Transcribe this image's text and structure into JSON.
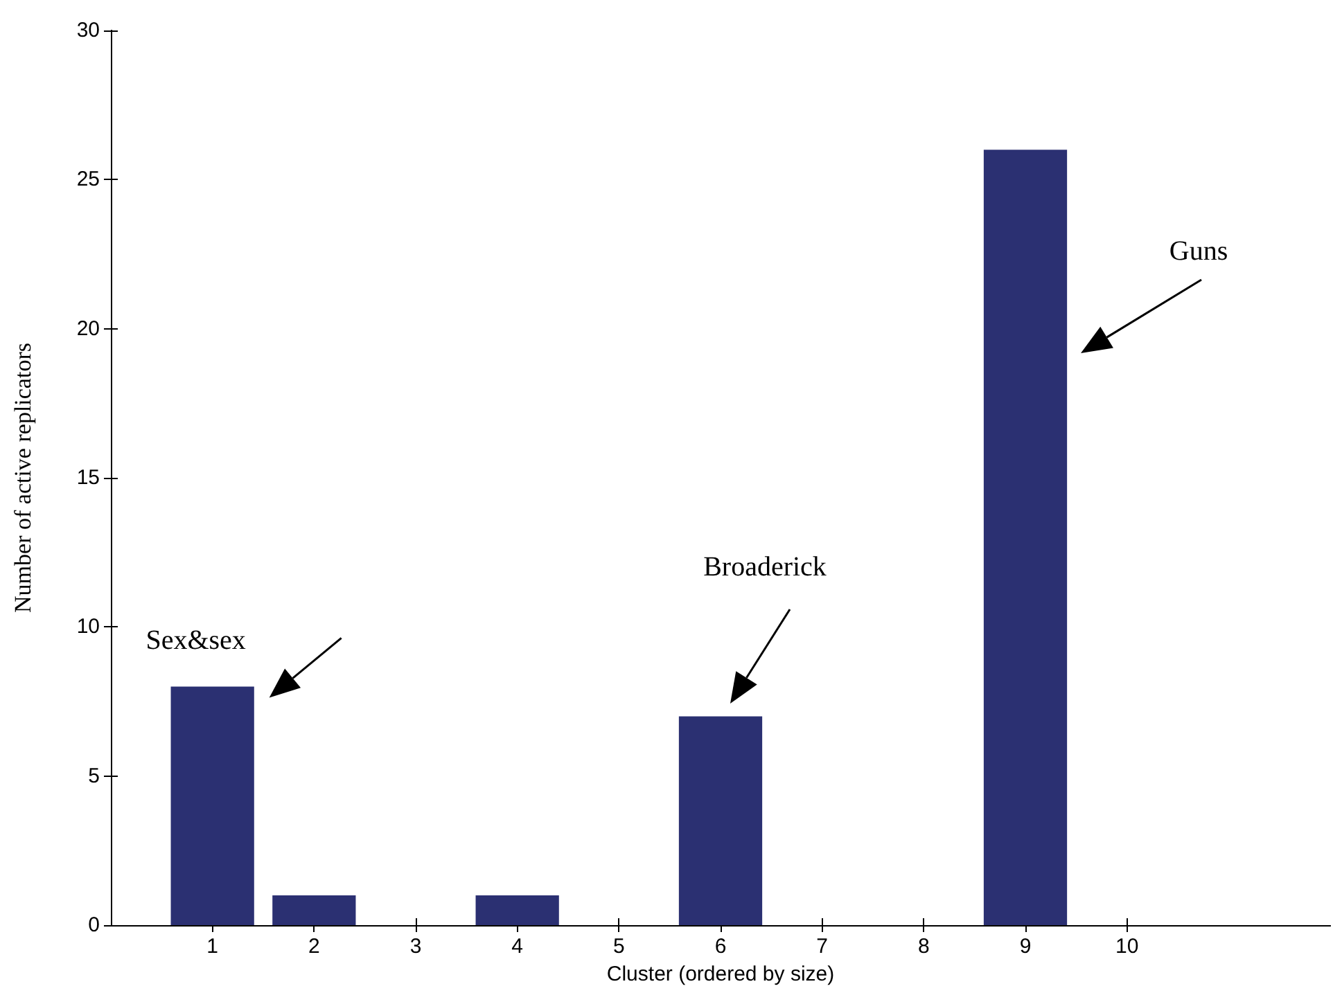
{
  "chart_data": {
    "type": "bar",
    "xlabel": "Cluster (ordered by size)",
    "ylabel": "Number of active replicators",
    "x": [
      1,
      2,
      3,
      4,
      5,
      6,
      7,
      8,
      9,
      10
    ],
    "values": [
      8,
      1,
      0,
      1,
      0,
      7,
      0,
      0,
      26,
      0
    ],
    "color": "#2b3072",
    "xlim": [
      0,
      12
    ],
    "xticks": [
      1,
      2,
      3,
      4,
      5,
      6,
      7,
      8,
      9,
      10
    ],
    "ylim": [
      0,
      30
    ],
    "yticks": [
      0,
      5,
      10,
      15,
      20,
      25,
      30
    ],
    "grid": false,
    "annotations": [
      {
        "text": "Sex&sex",
        "x": 1,
        "y": 8
      },
      "Broaderick",
      "Guns"
    ]
  }
}
